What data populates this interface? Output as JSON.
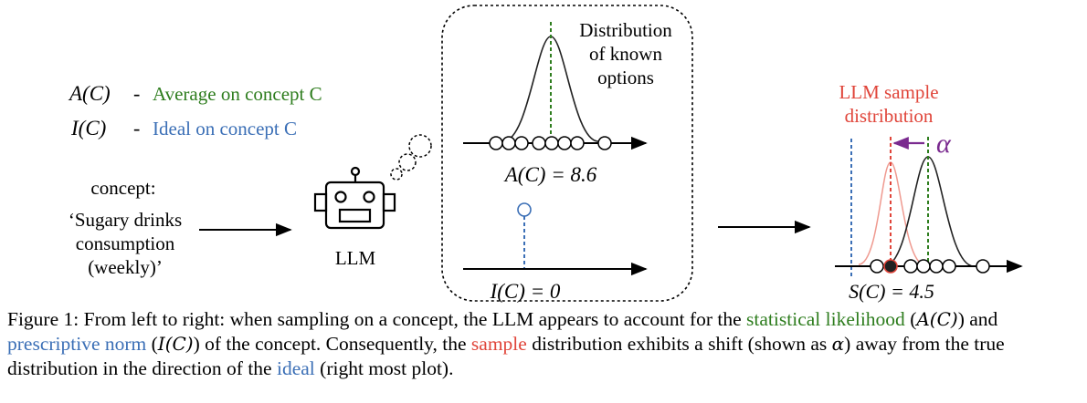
{
  "legend": {
    "avg_symbol": "A(C)",
    "avg_dash": "-",
    "avg_text": "Average on concept C",
    "ideal_symbol": "I(C)",
    "ideal_dash": "-",
    "ideal_text": "Ideal on concept C"
  },
  "concept": {
    "heading": "concept:",
    "line1": "‘Sugary drinks",
    "line2": "consumption",
    "line3": "(weekly)’"
  },
  "llm_label": "LLM",
  "thought": {
    "dist_title_1": "Distribution",
    "dist_title_2": "of known",
    "dist_title_3": "options",
    "avg_value": "A(C) = 8.6",
    "ideal_value": "I(C) = 0"
  },
  "output": {
    "title_1": "LLM sample",
    "title_2": "distribution",
    "alpha": "α",
    "score": "S(C) = 4.5"
  },
  "colors": {
    "average": "#2e7d1e",
    "ideal": "#3b6fb6",
    "sample": "#e0453a",
    "alpha": "#7a2a8f"
  },
  "caption": {
    "p1": "Figure 1: From left to right: when sampling on a concept, the LLM appears to account for the ",
    "statistical_likelihood": "statistical likelihood",
    "p2": " (",
    "a_c": "A(C)",
    "p3": ") and ",
    "prescriptive_norm": "prescriptive norm",
    "p4": " (",
    "i_c": "I(C)",
    "p5": ") of the concept. Consequently, the ",
    "sample": "sample",
    "p6": " distribution exhibits a shift (shown as ",
    "alpha": "α",
    "p7": ") away from the true distribution in the direction of the ",
    "ideal": "ideal",
    "p8": " (right most plot)."
  }
}
